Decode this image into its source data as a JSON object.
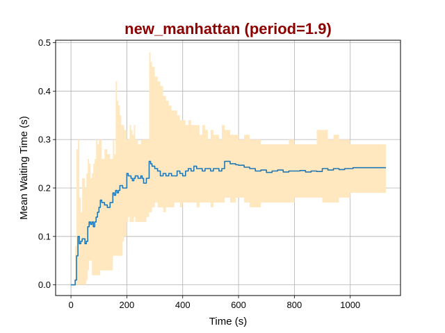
{
  "chart_data": {
    "type": "line",
    "title": "new_manhattan (period=1.9)",
    "title_color": "#8b0000",
    "xlabel": "Time (s)",
    "ylabel": "Mean Waiting Time (s)",
    "xlim": [
      -55,
      1180
    ],
    "ylim": [
      -0.022,
      0.505
    ],
    "xticks": [
      0,
      200,
      400,
      600,
      800,
      1000
    ],
    "xtick_labels": [
      "0",
      "200",
      "400",
      "600",
      "800",
      "1000"
    ],
    "yticks": [
      0.0,
      0.1,
      0.2,
      0.3,
      0.4,
      0.5
    ],
    "ytick_labels": [
      "0.0",
      "0.1",
      "0.2",
      "0.3",
      "0.4",
      "0.5"
    ],
    "grid": true,
    "series": [
      {
        "line_color": "#1f77b4",
        "band_color": "#ffe8c0",
        "x": [
          0,
          10,
          15,
          20,
          25,
          30,
          35,
          40,
          50,
          55,
          60,
          65,
          70,
          75,
          80,
          85,
          90,
          95,
          100,
          105,
          110,
          120,
          130,
          140,
          150,
          155,
          160,
          165,
          170,
          175,
          180,
          185,
          190,
          200,
          205,
          210,
          215,
          220,
          225,
          230,
          235,
          240,
          245,
          250,
          255,
          260,
          270,
          280,
          285,
          290,
          300,
          310,
          320,
          330,
          340,
          350,
          360,
          370,
          380,
          390,
          400,
          410,
          420,
          430,
          440,
          450,
          460,
          470,
          480,
          490,
          500,
          510,
          520,
          530,
          540,
          550,
          560,
          570,
          580,
          590,
          600,
          620,
          640,
          660,
          680,
          700,
          720,
          740,
          760,
          780,
          800,
          820,
          840,
          860,
          880,
          900,
          920,
          940,
          960,
          980,
          1000,
          1010,
          1040,
          1080,
          1128
        ],
        "y": [
          0.0,
          0.0,
          0.01,
          0.06,
          0.1,
          0.085,
          0.09,
          0.095,
          0.085,
          0.09,
          0.12,
          0.13,
          0.125,
          0.13,
          0.12,
          0.13,
          0.14,
          0.15,
          0.16,
          0.175,
          0.17,
          0.165,
          0.16,
          0.17,
          0.19,
          0.185,
          0.195,
          0.19,
          0.195,
          0.205,
          0.205,
          0.2,
          0.2,
          0.23,
          0.225,
          0.225,
          0.22,
          0.215,
          0.22,
          0.225,
          0.225,
          0.22,
          0.22,
          0.225,
          0.22,
          0.21,
          0.22,
          0.255,
          0.25,
          0.245,
          0.24,
          0.235,
          0.225,
          0.23,
          0.225,
          0.23,
          0.225,
          0.225,
          0.235,
          0.23,
          0.225,
          0.235,
          0.24,
          0.235,
          0.245,
          0.24,
          0.24,
          0.235,
          0.24,
          0.24,
          0.235,
          0.24,
          0.24,
          0.235,
          0.24,
          0.255,
          0.255,
          0.25,
          0.25,
          0.248,
          0.247,
          0.243,
          0.24,
          0.235,
          0.237,
          0.232,
          0.235,
          0.237,
          0.233,
          0.235,
          0.235,
          0.236,
          0.233,
          0.235,
          0.234,
          0.24,
          0.237,
          0.24,
          0.238,
          0.24,
          0.24,
          0.242,
          0.242,
          0.242,
          0.242
        ],
        "upper": [
          0.0,
          0.0,
          0.08,
          0.28,
          0.3,
          0.18,
          0.15,
          0.22,
          0.2,
          0.23,
          0.26,
          0.25,
          0.22,
          0.23,
          0.25,
          0.26,
          0.3,
          0.29,
          0.3,
          0.3,
          0.26,
          0.28,
          0.27,
          0.26,
          0.3,
          0.27,
          0.42,
          0.38,
          0.37,
          0.35,
          0.33,
          0.33,
          0.32,
          0.3,
          0.3,
          0.33,
          0.32,
          0.31,
          0.33,
          0.3,
          0.3,
          0.29,
          0.29,
          0.3,
          0.3,
          0.3,
          0.3,
          0.48,
          0.46,
          0.45,
          0.43,
          0.42,
          0.41,
          0.39,
          0.38,
          0.37,
          0.36,
          0.36,
          0.35,
          0.34,
          0.34,
          0.33,
          0.34,
          0.33,
          0.33,
          0.33,
          0.31,
          0.33,
          0.32,
          0.3,
          0.32,
          0.31,
          0.31,
          0.3,
          0.33,
          0.32,
          0.32,
          0.31,
          0.31,
          0.31,
          0.3,
          0.31,
          0.3,
          0.3,
          0.29,
          0.29,
          0.29,
          0.29,
          0.29,
          0.3,
          0.29,
          0.29,
          0.29,
          0.29,
          0.32,
          0.32,
          0.3,
          0.31,
          0.3,
          0.3,
          0.29,
          0.29,
          0.29,
          0.29,
          0.29
        ],
        "lower": [
          0.0,
          0.0,
          0.0,
          0.0,
          0.0,
          0.0,
          0.0,
          0.0,
          0.0,
          0.01,
          0.03,
          0.05,
          0.05,
          0.02,
          0.02,
          0.02,
          0.02,
          0.02,
          0.02,
          0.03,
          0.03,
          0.03,
          0.03,
          0.03,
          0.06,
          0.06,
          0.06,
          0.06,
          0.06,
          0.06,
          0.06,
          0.09,
          0.1,
          0.13,
          0.14,
          0.13,
          0.13,
          0.13,
          0.14,
          0.13,
          0.13,
          0.13,
          0.13,
          0.13,
          0.13,
          0.13,
          0.14,
          0.15,
          0.15,
          0.16,
          0.17,
          0.16,
          0.16,
          0.15,
          0.16,
          0.16,
          0.16,
          0.17,
          0.17,
          0.16,
          0.17,
          0.17,
          0.17,
          0.17,
          0.17,
          0.16,
          0.17,
          0.17,
          0.17,
          0.17,
          0.16,
          0.17,
          0.17,
          0.17,
          0.17,
          0.18,
          0.18,
          0.17,
          0.17,
          0.18,
          0.18,
          0.17,
          0.16,
          0.16,
          0.17,
          0.17,
          0.17,
          0.17,
          0.17,
          0.17,
          0.18,
          0.18,
          0.18,
          0.18,
          0.18,
          0.17,
          0.17,
          0.17,
          0.18,
          0.18,
          0.19,
          0.19,
          0.19,
          0.19,
          0.19
        ]
      }
    ]
  }
}
